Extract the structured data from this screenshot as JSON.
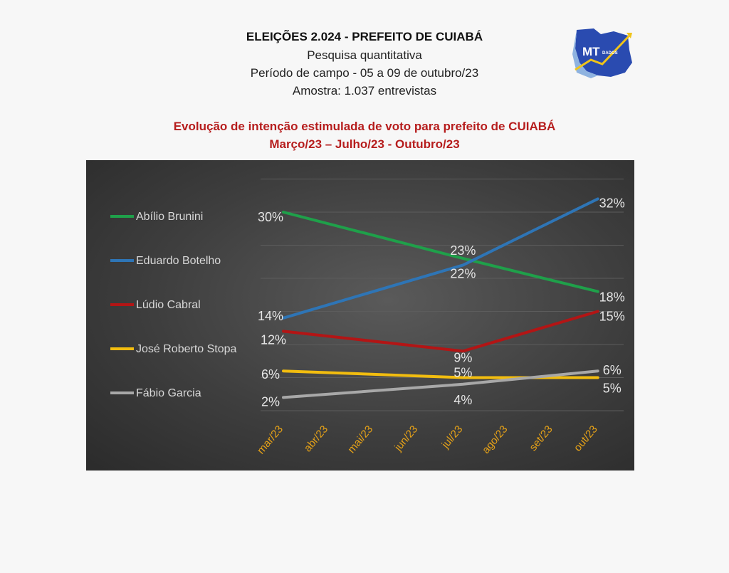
{
  "header": {
    "title": "ELEIÇÕES 2.024  -  PREFEITO DE CUIABÁ",
    "line1": "Pesquisa quantitativa",
    "line2": "Período de campo - 05 a 09 de outubro/23",
    "line3": "Amostra: 1.037 entrevistas"
  },
  "subtitle": {
    "line1": "Evolução de intenção estimulada de voto para prefeito de CUIABÁ",
    "line2": "Março/23 – Julho/23 -  Outubro/23"
  },
  "logo": {
    "text": "MT",
    "subtext": "DADOS",
    "icon": "mato-grosso-map-logo"
  },
  "chart_data": {
    "type": "line",
    "categories": [
      "mar/23",
      "abr/23",
      "mai/23",
      "jun/23",
      "jul/23",
      "ago/23",
      "set/23",
      "out/23"
    ],
    "legend_position": "left",
    "grid": true,
    "series": [
      {
        "name": "Abílio Brunini",
        "color": "#1fa04a",
        "points": [
          {
            "x": "mar/23",
            "y": 30
          },
          {
            "x": "jul/23",
            "y": 23
          },
          {
            "x": "out/23",
            "y": 18
          }
        ]
      },
      {
        "name": "Eduardo Botelho",
        "color": "#2e75b6",
        "points": [
          {
            "x": "mar/23",
            "y": 14
          },
          {
            "x": "jul/23",
            "y": 22
          },
          {
            "x": "out/23",
            "y": 32
          }
        ]
      },
      {
        "name": "Lúdio Cabral",
        "color": "#b31515",
        "points": [
          {
            "x": "mar/23",
            "y": 12
          },
          {
            "x": "jul/23",
            "y": 9
          },
          {
            "x": "out/23",
            "y": 15
          }
        ]
      },
      {
        "name": "José Roberto Stopa",
        "color": "#f2bd0f",
        "points": [
          {
            "x": "mar/23",
            "y": 6
          },
          {
            "x": "jul/23",
            "y": 5
          },
          {
            "x": "out/23",
            "y": 5
          }
        ]
      },
      {
        "name": "Fábio Garcia",
        "color": "#a8a8a8",
        "points": [
          {
            "x": "mar/23",
            "y": 2
          },
          {
            "x": "jul/23",
            "y": 4
          },
          {
            "x": "out/23",
            "y": 6
          }
        ]
      }
    ]
  }
}
